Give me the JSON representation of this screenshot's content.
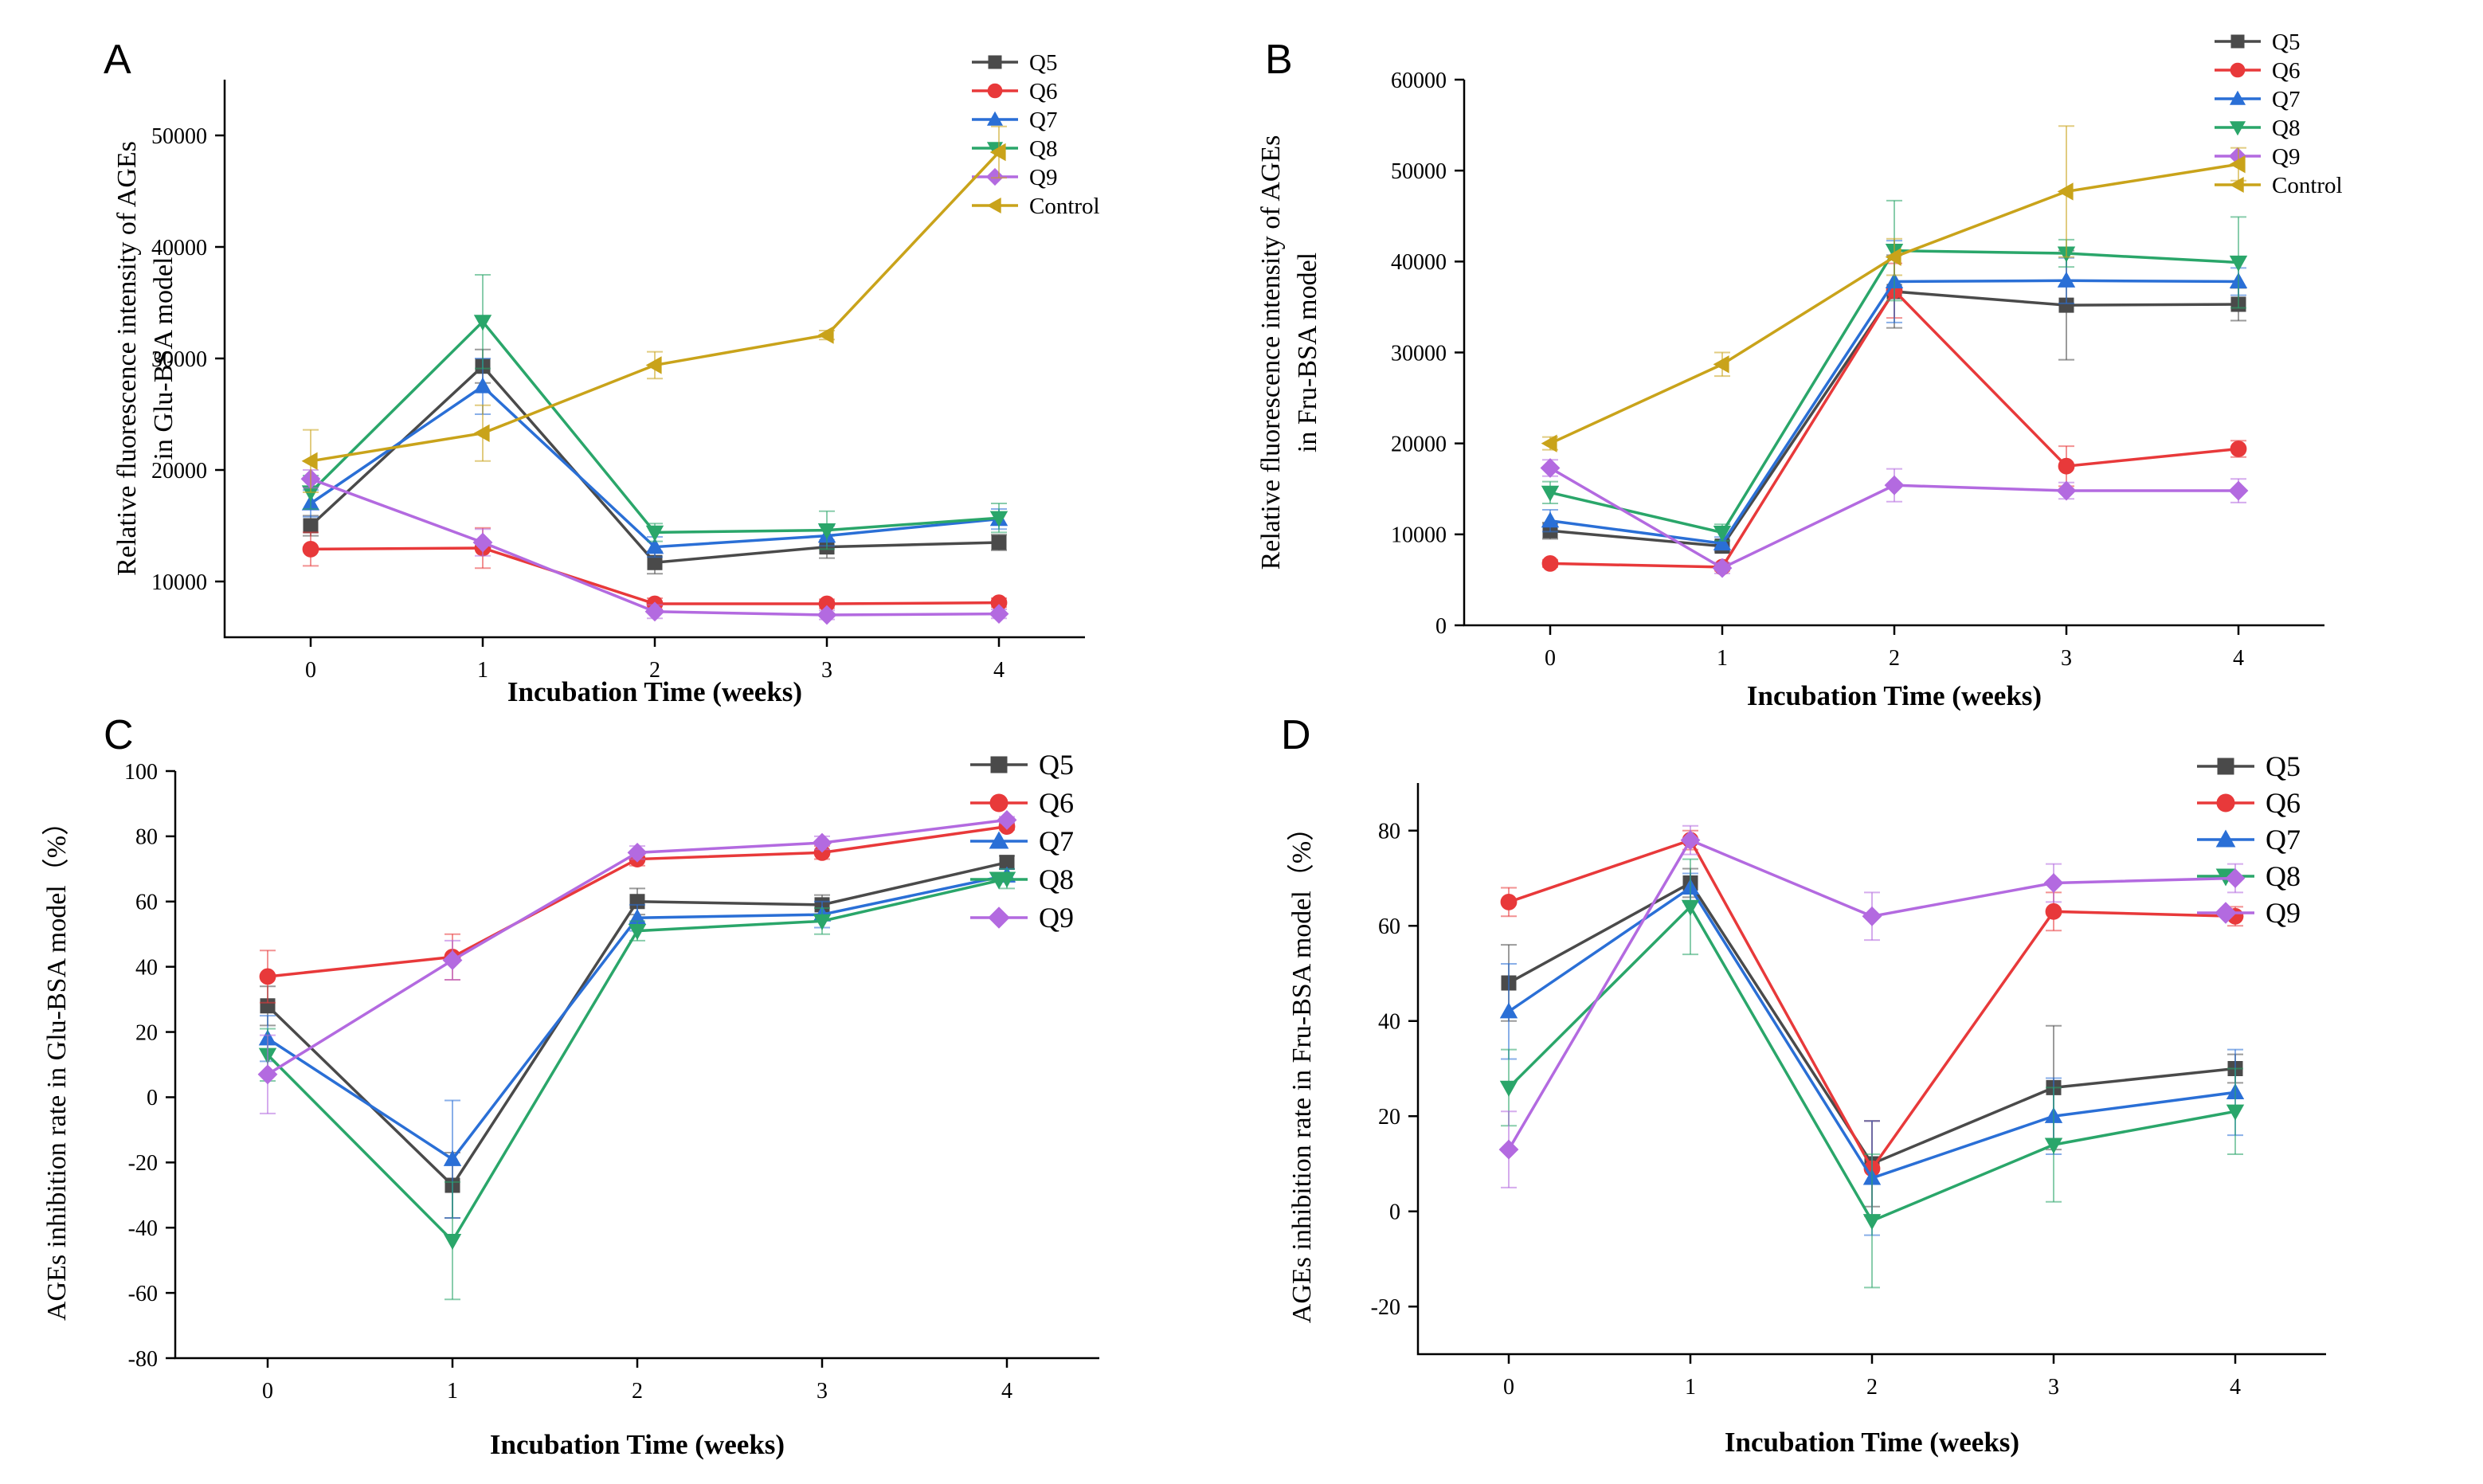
{
  "colors": {
    "Q5": "#4a4a4a",
    "Q6": "#e8393a",
    "Q7": "#2a6fd6",
    "Q8": "#2aa66a",
    "Q9": "#b36ae0",
    "Control": "#c9a31a"
  },
  "markers": {
    "Q5": "square",
    "Q6": "circle",
    "Q7": "triangle-up",
    "Q8": "triangle-down",
    "Q9": "diamond",
    "Control": "triangle-left"
  },
  "chart_data": [
    {
      "panel": "A",
      "type": "line",
      "xlabel": "Incubation Time (weeks)",
      "ylabel_lines": [
        "Relative fluorescence intensity of AGEs",
        "in Glu-BSA model"
      ],
      "x": [
        0,
        1,
        2,
        3,
        4
      ],
      "xlim": [
        -0.5,
        4.5
      ],
      "ylim": [
        5000,
        55000
      ],
      "yticks": [
        10000,
        20000,
        30000,
        40000,
        50000
      ],
      "xtick_labels": [
        "0",
        "1",
        "2",
        "3",
        "4"
      ],
      "ytick_labels": [
        "10000",
        "20000",
        "30000",
        "40000",
        "50000"
      ],
      "legend_position": "top-right",
      "series": [
        {
          "name": "Q5",
          "values": [
            15000,
            29300,
            11700,
            13100,
            13500
          ],
          "errors": [
            900,
            1500,
            1000,
            1000,
            700
          ]
        },
        {
          "name": "Q6",
          "values": [
            12900,
            13000,
            8000,
            8000,
            8100
          ],
          "errors": [
            1500,
            1800,
            500,
            400,
            400
          ]
        },
        {
          "name": "Q7",
          "values": [
            17000,
            27500,
            13100,
            14100,
            15600
          ],
          "errors": [
            1200,
            2500,
            900,
            900,
            900
          ]
        },
        {
          "name": "Q8",
          "values": [
            18000,
            33300,
            14400,
            14600,
            15700
          ],
          "errors": [
            1500,
            4200,
            800,
            1700,
            1300
          ]
        },
        {
          "name": "Q9",
          "values": [
            19200,
            13500,
            7300,
            7000,
            7100
          ],
          "errors": [
            800,
            1200,
            600,
            400,
            400
          ]
        },
        {
          "name": "Control",
          "values": [
            20800,
            23300,
            29400,
            32100,
            48500
          ],
          "errors": [
            2800,
            2500,
            1200,
            400,
            2300
          ]
        }
      ]
    },
    {
      "panel": "B",
      "type": "line",
      "xlabel": "Incubation Time (weeks)",
      "ylabel_lines": [
        "Relative fluorescence intensity of AGEs",
        "in Fru-BSA model"
      ],
      "x": [
        0,
        1,
        2,
        3,
        4
      ],
      "xlim": [
        -0.5,
        4.5
      ],
      "ylim": [
        0,
        60000
      ],
      "yticks": [
        0,
        10000,
        20000,
        30000,
        40000,
        50000,
        60000
      ],
      "xtick_labels": [
        "0",
        "1",
        "2",
        "3",
        "4"
      ],
      "ytick_labels": [
        "0",
        "10000",
        "20000",
        "30000",
        "40000",
        "50000",
        "60000"
      ],
      "legend_position": "top-right",
      "series": [
        {
          "name": "Q5",
          "values": [
            10400,
            8700,
            36700,
            35200,
            35300
          ],
          "errors": [
            900,
            600,
            4000,
            6000,
            1800
          ]
        },
        {
          "name": "Q6",
          "values": [
            6800,
            6400,
            36800,
            17500,
            19400
          ],
          "errors": [
            400,
            400,
            3000,
            2200,
            900
          ]
        },
        {
          "name": "Q7",
          "values": [
            11500,
            9000,
            37800,
            37900,
            37800
          ],
          "errors": [
            1200,
            700,
            4500,
            2500,
            1500
          ]
        },
        {
          "name": "Q8",
          "values": [
            14600,
            10200,
            41200,
            40900,
            39900
          ],
          "errors": [
            1200,
            900,
            5500,
            1500,
            5000
          ]
        },
        {
          "name": "Q9",
          "values": [
            17300,
            6300,
            15400,
            14800,
            14800
          ],
          "errors": [
            900,
            600,
            1800,
            900,
            1300
          ]
        },
        {
          "name": "Control",
          "values": [
            20000,
            28700,
            40500,
            47700,
            50700
          ],
          "errors": [
            700,
            1300,
            2000,
            7200,
            1800
          ]
        }
      ]
    },
    {
      "panel": "C",
      "type": "line",
      "xlabel": "Incubation Time (weeks)",
      "ylabel_lines": [
        "AGEs inhibition rate in Glu-BSA model（%）"
      ],
      "x": [
        0,
        1,
        2,
        3,
        4
      ],
      "xlim": [
        -0.5,
        4.5
      ],
      "ylim": [
        -80,
        100
      ],
      "yticks": [
        -80,
        -60,
        -40,
        -20,
        0,
        20,
        40,
        60,
        80,
        100
      ],
      "xtick_labels": [
        "0",
        "1",
        "2",
        "3",
        "4"
      ],
      "ytick_labels": [
        "-80",
        "-60",
        "-40",
        "-20",
        "0",
        "20",
        "40",
        "60",
        "80",
        "100"
      ],
      "legend_position": "top-right",
      "series": [
        {
          "name": "Q5",
          "values": [
            28,
            -27,
            60,
            59,
            72
          ],
          "errors": [
            6,
            10,
            4,
            3,
            2
          ]
        },
        {
          "name": "Q6",
          "values": [
            37,
            43,
            73,
            75,
            83
          ],
          "errors": [
            8,
            7,
            2,
            2,
            1
          ]
        },
        {
          "name": "Q7",
          "values": [
            18,
            -19,
            55,
            56,
            68
          ],
          "errors": [
            7,
            18,
            4,
            4,
            2
          ]
        },
        {
          "name": "Q8",
          "values": [
            13,
            -44,
            51,
            54,
            67
          ],
          "errors": [
            8,
            18,
            3,
            4,
            3
          ]
        },
        {
          "name": "Q9",
          "values": [
            7,
            42,
            75,
            78,
            85
          ],
          "errors": [
            12,
            6,
            2,
            2,
            1
          ]
        }
      ]
    },
    {
      "panel": "D",
      "type": "line",
      "xlabel": "Incubation Time (weeks)",
      "ylabel_lines": [
        "AGEs inhibition rate in Fru-BSA model（%）"
      ],
      "x": [
        0,
        1,
        2,
        3,
        4
      ],
      "xlim": [
        -0.5,
        4.5
      ],
      "ylim": [
        -30,
        90
      ],
      "yticks": [
        -20,
        0,
        20,
        40,
        60,
        80
      ],
      "xtick_labels": [
        "0",
        "1",
        "2",
        "3",
        "4"
      ],
      "ytick_labels": [
        "-20",
        "0",
        "20",
        "40",
        "60",
        "80"
      ],
      "legend_position": "top-right",
      "series": [
        {
          "name": "Q5",
          "values": [
            48,
            69,
            10,
            26,
            30
          ],
          "errors": [
            8,
            3,
            9,
            13,
            3
          ]
        },
        {
          "name": "Q6",
          "values": [
            65,
            78,
            9,
            63,
            62
          ],
          "errors": [
            3,
            2,
            10,
            4,
            2
          ]
        },
        {
          "name": "Q7",
          "values": [
            42,
            68,
            7,
            20,
            25
          ],
          "errors": [
            10,
            3,
            12,
            8,
            9
          ]
        },
        {
          "name": "Q8",
          "values": [
            26,
            64,
            -2,
            14,
            21
          ],
          "errors": [
            8,
            10,
            14,
            12,
            9
          ]
        },
        {
          "name": "Q9",
          "values": [
            13,
            78,
            62,
            69,
            70
          ],
          "errors": [
            8,
            3,
            5,
            4,
            3
          ]
        }
      ]
    }
  ]
}
